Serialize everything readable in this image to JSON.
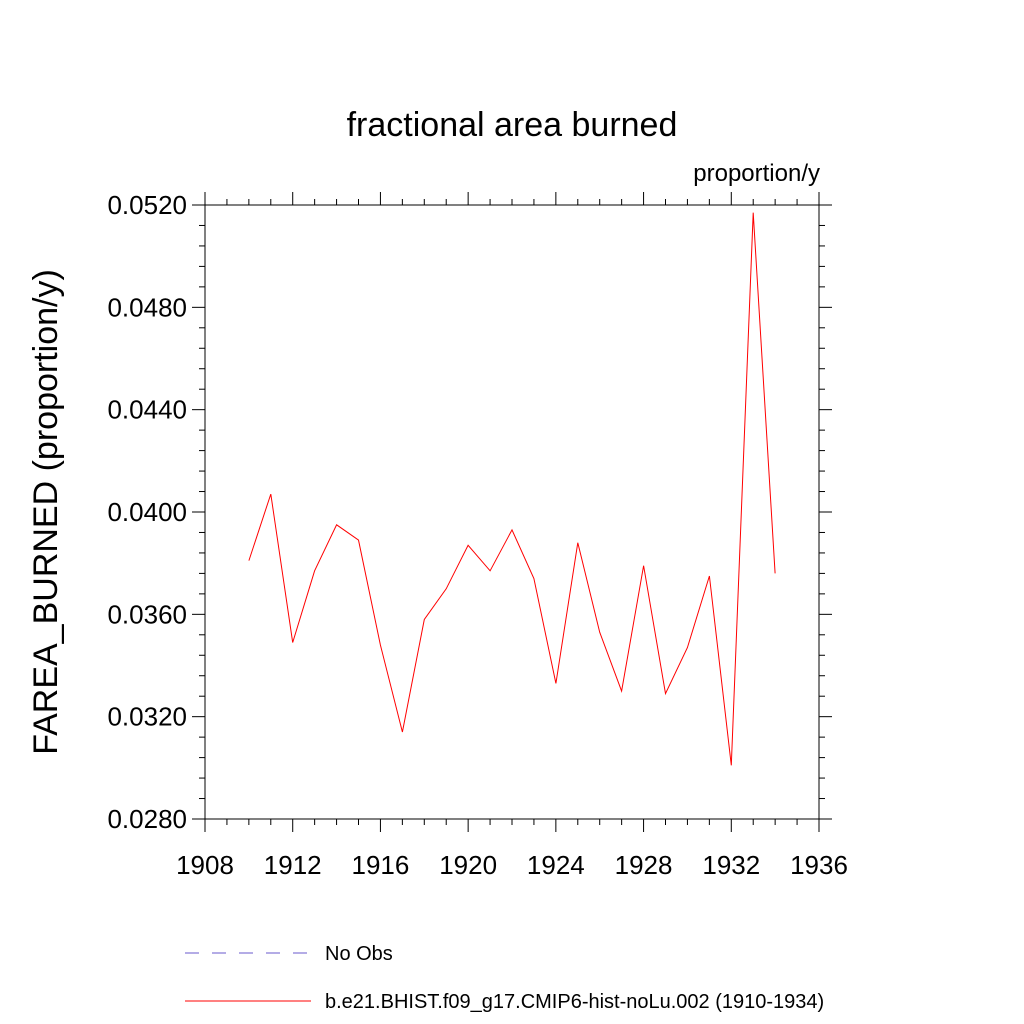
{
  "chart_data": {
    "type": "line",
    "title": "fractional area burned",
    "units_label": "proportion/y",
    "ylabel": "FAREA_BURNED  (proportion/y)",
    "xlabel": "",
    "xlim": [
      1908,
      1936
    ],
    "ylim": [
      0.028,
      0.052
    ],
    "x_ticks": [
      1908,
      1912,
      1916,
      1920,
      1924,
      1928,
      1932,
      1936
    ],
    "x_tick_labels": [
      "1908",
      "1912",
      "1916",
      "1920",
      "1924",
      "1928",
      "1932",
      "1936"
    ],
    "y_ticks": [
      0.028,
      0.032,
      0.036,
      0.04,
      0.044,
      0.048,
      0.052
    ],
    "y_tick_labels": [
      "0.0280",
      "0.0320",
      "0.0360",
      "0.0400",
      "0.0440",
      "0.0480",
      "0.0520"
    ],
    "grid": false,
    "legend_position": "bottom",
    "series": [
      {
        "name": "b.e21.BHIST.f09_g17.CMIP6-hist-noLu.002 (1910-1934)",
        "color": "#ff0000",
        "style": "solid",
        "x": [
          1910,
          1911,
          1912,
          1913,
          1914,
          1915,
          1916,
          1917,
          1918,
          1919,
          1920,
          1921,
          1922,
          1923,
          1924,
          1925,
          1926,
          1927,
          1928,
          1929,
          1930,
          1931,
          1932,
          1933,
          1934
        ],
        "y": [
          0.0381,
          0.0407,
          0.0349,
          0.0377,
          0.0395,
          0.0389,
          0.0348,
          0.0314,
          0.0358,
          0.037,
          0.0387,
          0.0377,
          0.0393,
          0.0374,
          0.0333,
          0.0388,
          0.0353,
          0.033,
          0.0379,
          0.0329,
          0.0347,
          0.0375,
          0.0301,
          0.0517,
          0.0376
        ]
      }
    ],
    "legend": [
      {
        "label": "No Obs",
        "color": "#6a5acd",
        "style": "dashed"
      },
      {
        "label": "b.e21.BHIST.f09_g17.CMIP6-hist-noLu.002 (1910-1934)",
        "color": "#ff0000",
        "style": "solid"
      }
    ]
  }
}
